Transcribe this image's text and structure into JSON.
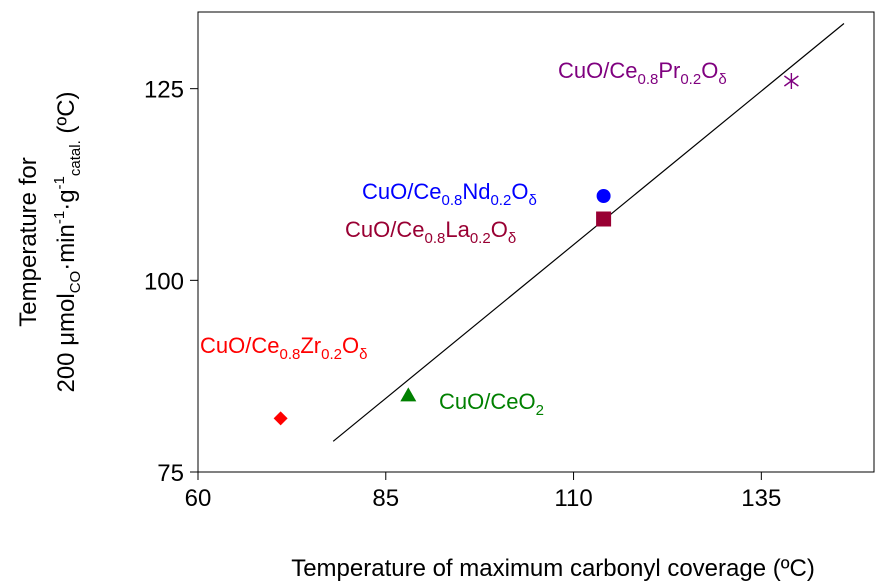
{
  "chart_data": {
    "type": "scatter",
    "title": "",
    "xlabel": "Temperature of maximum carbonyl coverage (ºC)",
    "ylabel": {
      "line1": "Temperature for",
      "line2_prefix": "200 μmol",
      "sub_co": "CO",
      "mid1": "·min",
      "sup1": "-1",
      "mid2": "·g",
      "sup2": "-1",
      "sub_catal": "catal.",
      "suffix": " (ºC)"
    },
    "xlim": [
      60,
      150
    ],
    "ylim": [
      75,
      135
    ],
    "x_ticks": [
      60,
      85,
      110,
      135
    ],
    "y_ticks": [
      75,
      100,
      125
    ],
    "grid": false,
    "legend": "none",
    "points": [
      {
        "x": 71,
        "y": 82,
        "marker": "diamond",
        "color": "#ff0000",
        "label": [
          [
            "CuO/Ce",
            ""
          ],
          [
            "0.8",
            "sub"
          ],
          [
            "Zr",
            ""
          ],
          [
            "0.2",
            "sub"
          ],
          [
            "O",
            ""
          ],
          [
            "δ",
            "sub"
          ]
        ]
      },
      {
        "x": 88,
        "y": 85,
        "marker": "triangle",
        "color": "#008000",
        "label": [
          [
            "CuO/CeO",
            ""
          ],
          [
            "2",
            "sub"
          ]
        ]
      },
      {
        "x": 114,
        "y": 108,
        "marker": "square",
        "color": "#990033",
        "label": [
          [
            "CuO/Ce",
            ""
          ],
          [
            "0.8",
            "sub"
          ],
          [
            "La",
            ""
          ],
          [
            "0.2",
            "sub"
          ],
          [
            "O",
            ""
          ],
          [
            "δ",
            "sub"
          ]
        ]
      },
      {
        "x": 114,
        "y": 111,
        "marker": "circle",
        "color": "#0000ff",
        "label": [
          [
            "CuO/Ce",
            ""
          ],
          [
            "0.8",
            "sub"
          ],
          [
            "Nd",
            ""
          ],
          [
            "0.2",
            "sub"
          ],
          [
            "O",
            ""
          ],
          [
            "δ",
            "sub"
          ]
        ]
      },
      {
        "x": 139,
        "y": 126,
        "marker": "star",
        "color": "#7f007f",
        "label": [
          [
            "CuO/Ce",
            ""
          ],
          [
            "0.8",
            "sub"
          ],
          [
            "Pr",
            ""
          ],
          [
            "0.2",
            "sub"
          ],
          [
            "O",
            ""
          ],
          [
            "δ",
            "sub"
          ]
        ]
      }
    ],
    "trendline": {
      "x1": 78,
      "y1": 79,
      "x2": 146,
      "y2": 133.5,
      "color": "#000000"
    }
  }
}
